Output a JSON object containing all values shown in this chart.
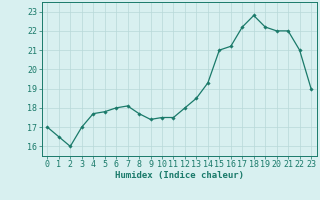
{
  "x": [
    0,
    1,
    2,
    3,
    4,
    5,
    6,
    7,
    8,
    9,
    10,
    11,
    12,
    13,
    14,
    15,
    16,
    17,
    18,
    19,
    20,
    21,
    22,
    23
  ],
  "y": [
    17,
    16.5,
    16,
    17,
    17.7,
    17.8,
    18,
    18.1,
    17.7,
    17.4,
    17.5,
    17.5,
    18,
    18.5,
    19.3,
    21,
    21.2,
    22.2,
    22.8,
    22.2,
    22,
    22,
    21,
    19
  ],
  "line_color": "#1a7a6a",
  "marker": "D",
  "marker_size": 1.8,
  "bg_color": "#d8f0f0",
  "grid_color": "#b8d8d8",
  "xlabel": "Humidex (Indice chaleur)",
  "xlim": [
    -0.5,
    23.5
  ],
  "ylim": [
    15.5,
    23.5
  ],
  "yticks": [
    16,
    17,
    18,
    19,
    20,
    21,
    22,
    23
  ],
  "xticks": [
    0,
    1,
    2,
    3,
    4,
    5,
    6,
    7,
    8,
    9,
    10,
    11,
    12,
    13,
    14,
    15,
    16,
    17,
    18,
    19,
    20,
    21,
    22,
    23
  ],
  "label_fontsize": 6.5,
  "tick_fontsize": 6.0,
  "linewidth": 0.9
}
